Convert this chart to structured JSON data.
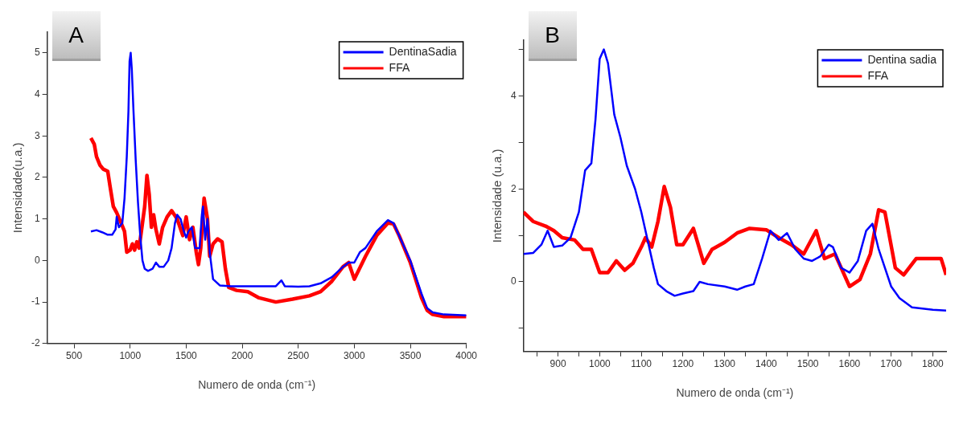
{
  "chart_data": [
    {
      "type": "line",
      "title": "A",
      "xlabel": "Numero de onda (cm⁻¹)",
      "ylabel": "Intensidade(u.a.)",
      "xlim": [
        260,
        4000
      ],
      "xticks": [
        500,
        1000,
        1500,
        2000,
        2500,
        3000,
        3500,
        4000
      ],
      "ylim": [
        -2,
        5.5
      ],
      "yticks": [
        -2,
        -1,
        0,
        1,
        2,
        3,
        4,
        5
      ],
      "grid": false,
      "legend": "top right",
      "marker": "none",
      "line_style": "solid",
      "series": [
        {
          "name": "DentinaSadia",
          "color": "#0000ff",
          "x": [
            650,
            700,
            750,
            800,
            840,
            870,
            880,
            900,
            930,
            950,
            970,
            985,
            995,
            1005,
            1015,
            1030,
            1050,
            1070,
            1090,
            1110,
            1130,
            1160,
            1200,
            1230,
            1260,
            1300,
            1340,
            1370,
            1400,
            1420,
            1450,
            1480,
            1500,
            1520,
            1550,
            1580,
            1620,
            1640,
            1650,
            1670,
            1690,
            1710,
            1740,
            1800,
            1900,
            2000,
            2300,
            2350,
            2380,
            2500,
            2600,
            2700,
            2800,
            2900,
            2950,
            3000,
            3050,
            3100,
            3200,
            3300,
            3350,
            3400,
            3500,
            3600,
            3650,
            3700,
            3800,
            4000
          ],
          "values": [
            0.7,
            0.73,
            0.68,
            0.62,
            0.62,
            0.75,
            1.05,
            0.8,
            0.9,
            1.5,
            2.5,
            3.6,
            4.8,
            5.0,
            4.6,
            3.6,
            2.4,
            1.4,
            0.6,
            0,
            -0.2,
            -0.25,
            -0.2,
            -0.05,
            -0.15,
            -0.15,
            0,
            0.3,
            0.9,
            1.1,
            1.0,
            0.7,
            0.55,
            0.7,
            0.8,
            0.3,
            0.3,
            1.1,
            1.3,
            0.5,
            1.0,
            0.2,
            -0.45,
            -0.6,
            -0.62,
            -0.62,
            -0.62,
            -0.48,
            -0.62,
            -0.63,
            -0.62,
            -0.55,
            -0.4,
            -0.15,
            -0.05,
            -0.05,
            0.2,
            0.3,
            0.7,
            0.97,
            0.9,
            0.6,
            0.0,
            -0.8,
            -1.15,
            -1.25,
            -1.3,
            -1.32
          ]
        },
        {
          "name": "FFA",
          "color": "#ff0000",
          "x": [
            650,
            680,
            700,
            730,
            760,
            800,
            820,
            850,
            880,
            920,
            950,
            970,
            1000,
            1020,
            1040,
            1060,
            1080,
            1110,
            1130,
            1150,
            1170,
            1190,
            1210,
            1230,
            1260,
            1290,
            1330,
            1370,
            1420,
            1470,
            1500,
            1530,
            1560,
            1590,
            1610,
            1630,
            1660,
            1690,
            1710,
            1740,
            1780,
            1820,
            1850,
            1880,
            1950,
            2050,
            2150,
            2300,
            2450,
            2600,
            2700,
            2800,
            2900,
            2950,
            3000,
            3100,
            3200,
            3300,
            3350,
            3400,
            3500,
            3600,
            3650,
            3700,
            3800,
            4000
          ],
          "values": [
            2.95,
            2.8,
            2.5,
            2.3,
            2.2,
            2.15,
            1.8,
            1.3,
            1.15,
            0.9,
            0.7,
            0.2,
            0.25,
            0.4,
            0.25,
            0.45,
            0.3,
            0.9,
            1.3,
            2.05,
            1.6,
            0.8,
            1.1,
            0.75,
            0.4,
            0.8,
            1.05,
            1.2,
            1.0,
            0.6,
            1.05,
            0.5,
            0.8,
            0.2,
            -0.1,
            0.3,
            1.5,
            1.0,
            0.1,
            0.4,
            0.52,
            0.45,
            -0.2,
            -0.65,
            -0.72,
            -0.75,
            -0.9,
            -1.0,
            -0.93,
            -0.85,
            -0.75,
            -0.5,
            -0.15,
            -0.05,
            -0.45,
            0.1,
            0.6,
            0.9,
            0.88,
            0.6,
            -0.05,
            -0.9,
            -1.2,
            -1.3,
            -1.35,
            -1.35
          ]
        }
      ]
    },
    {
      "type": "line",
      "title": "B",
      "xlabel": "Numero de onda (cm⁻¹)",
      "ylabel": "Intensidade (u.a.)",
      "xlim": [
        817,
        1832
      ],
      "xticks": [
        {
          "value": 850,
          "label": null
        },
        900,
        {
          "value": 950,
          "label": null
        },
        1000,
        {
          "value": 1050,
          "label": null
        },
        1100,
        {
          "value": 1150,
          "label": null
        },
        1200,
        {
          "value": 1250,
          "label": null
        },
        1300,
        {
          "value": 1350,
          "label": null
        },
        1400,
        {
          "value": 1450,
          "label": null
        },
        1500,
        {
          "value": 1550,
          "label": null
        },
        1600,
        {
          "value": 1650,
          "label": null
        },
        1700,
        {
          "value": 1750,
          "label": null
        },
        1800
      ],
      "ylim": [
        -1.5,
        5.2
      ],
      "yticks": [
        {
          "value": -1,
          "label": null
        },
        0,
        {
          "value": 1,
          "label": null
        },
        2,
        {
          "value": 3,
          "label": null
        },
        4,
        {
          "value": 5,
          "label": null
        }
      ],
      "grid": false,
      "legend": "top right",
      "marker": "none",
      "line_style": "solid",
      "series": [
        {
          "name": "Dentina sadia",
          "color": "#0000ff",
          "x": [
            817,
            840,
            860,
            875,
            890,
            910,
            930,
            950,
            965,
            980,
            990,
            1000,
            1010,
            1020,
            1035,
            1050,
            1065,
            1085,
            1100,
            1115,
            1130,
            1140,
            1160,
            1180,
            1200,
            1225,
            1240,
            1260,
            1300,
            1330,
            1350,
            1370,
            1390,
            1410,
            1430,
            1450,
            1470,
            1490,
            1510,
            1530,
            1550,
            1560,
            1580,
            1600,
            1620,
            1640,
            1655,
            1670,
            1700,
            1720,
            1750,
            1800,
            1832
          ],
          "values": [
            0.6,
            0.62,
            0.8,
            1.1,
            0.75,
            0.78,
            0.95,
            1.5,
            2.4,
            2.55,
            3.5,
            4.8,
            5.0,
            4.7,
            3.6,
            3.1,
            2.5,
            2.0,
            1.5,
            0.9,
            0.3,
            -0.05,
            -0.2,
            -0.3,
            -0.25,
            -0.2,
            0,
            -0.05,
            -0.1,
            -0.17,
            -0.1,
            -0.05,
            0.5,
            1.1,
            0.9,
            1.05,
            0.7,
            0.5,
            0.45,
            0.55,
            0.8,
            0.75,
            0.3,
            0.2,
            0.45,
            1.1,
            1.25,
            0.7,
            -0.1,
            -0.35,
            -0.55,
            -0.6,
            -0.62
          ]
        },
        {
          "name": "FFA",
          "color": "#ff0000",
          "x": [
            817,
            840,
            870,
            890,
            910,
            940,
            960,
            980,
            1000,
            1020,
            1040,
            1060,
            1080,
            1100,
            1110,
            1125,
            1140,
            1155,
            1170,
            1185,
            1200,
            1225,
            1250,
            1270,
            1300,
            1330,
            1360,
            1400,
            1430,
            1460,
            1490,
            1520,
            1540,
            1565,
            1580,
            1600,
            1625,
            1650,
            1670,
            1685,
            1710,
            1730,
            1760,
            1800,
            1820,
            1832
          ],
          "values": [
            1.5,
            1.3,
            1.2,
            1.1,
            0.95,
            0.9,
            0.7,
            0.7,
            0.2,
            0.2,
            0.45,
            0.25,
            0.4,
            0.75,
            0.95,
            0.75,
            1.3,
            2.05,
            1.6,
            0.8,
            0.8,
            1.15,
            0.4,
            0.7,
            0.85,
            1.05,
            1.15,
            1.12,
            0.95,
            0.8,
            0.6,
            1.1,
            0.5,
            0.6,
            0.3,
            -0.1,
            0.05,
            0.6,
            1.55,
            1.5,
            0.3,
            0.15,
            0.5,
            0.5,
            0.5,
            0.15
          ]
        }
      ]
    }
  ]
}
